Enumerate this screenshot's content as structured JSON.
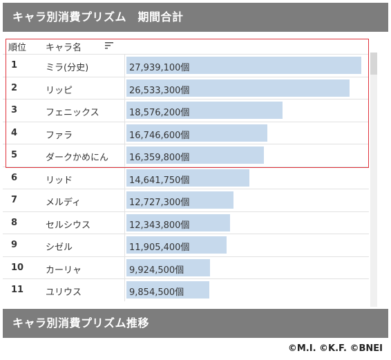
{
  "top_header": {
    "title": "キャラ別消費プリズム　期間合計"
  },
  "table": {
    "col_rank": "順位",
    "col_name": "キャラ名",
    "rows": [
      {
        "rank": "1",
        "name": "ミラ(分史)",
        "value": "27,939,100個",
        "amount": 27939100
      },
      {
        "rank": "2",
        "name": "リッピ",
        "value": "26,533,300個",
        "amount": 26533300
      },
      {
        "rank": "3",
        "name": "フェニックス",
        "value": "18,576,200個",
        "amount": 18576200
      },
      {
        "rank": "4",
        "name": "ファラ",
        "value": "16,746,600個",
        "amount": 16746600
      },
      {
        "rank": "5",
        "name": "ダークかめにん",
        "value": "16,359,800個",
        "amount": 16359800
      },
      {
        "rank": "6",
        "name": "リッド",
        "value": "14,641,750個",
        "amount": 14641750
      },
      {
        "rank": "7",
        "name": "メルディ",
        "value": "12,727,300個",
        "amount": 12727300
      },
      {
        "rank": "8",
        "name": "セルシウス",
        "value": "12,343,800個",
        "amount": 12343800
      },
      {
        "rank": "9",
        "name": "シゼル",
        "value": "11,905,400個",
        "amount": 11905400
      },
      {
        "rank": "10",
        "name": "カーリャ",
        "value": "9,924,500個",
        "amount": 9924500
      },
      {
        "rank": "11",
        "name": "ユリウス",
        "value": "9,854,500個",
        "amount": 9854500
      }
    ]
  },
  "bottom_header": {
    "title": "キャラ別消費プリズム推移"
  },
  "copyright": "©M.I. ©K.F. ©BNEI",
  "colors": {
    "header_bg": "#7d7d7d",
    "bar": "#c6d9ec",
    "highlight": "#e0313a"
  }
}
